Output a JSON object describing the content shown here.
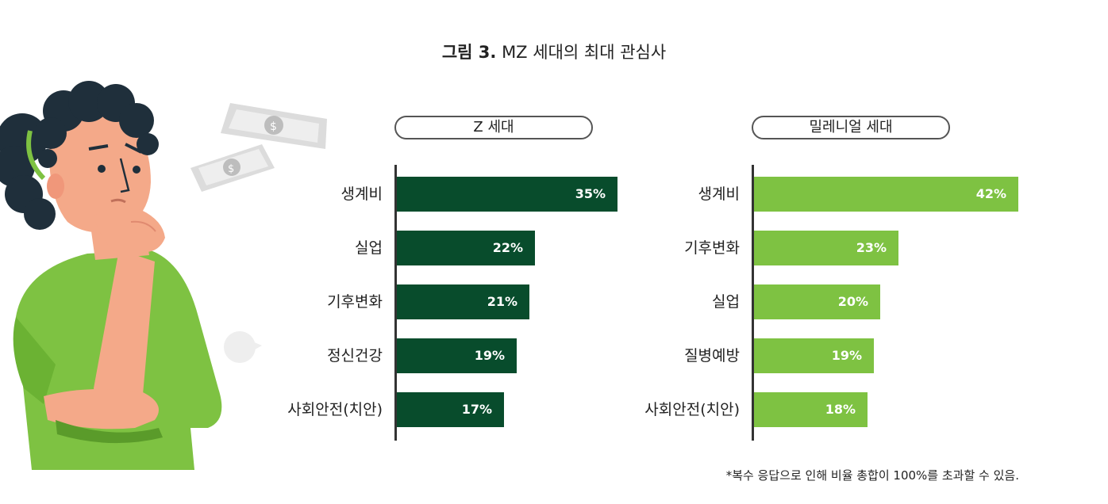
{
  "title": {
    "bold": "그림 3.",
    "rest": "MZ 세대의 최대 관심사"
  },
  "colors": {
    "z_bar": "#084c2c",
    "m_bar": "#7ec242"
  },
  "chart_data": [
    {
      "type": "bar",
      "orientation": "horizontal",
      "title": "Z 세대",
      "categories": [
        "생계비",
        "실업",
        "기후변화",
        "정신건강",
        "사회안전(치안)"
      ],
      "values": [
        35,
        22,
        21,
        19,
        17
      ],
      "value_labels": [
        "35%",
        "22%",
        "21%",
        "19%",
        "17%"
      ],
      "unit": "%",
      "xlim": [
        0,
        42
      ],
      "color": "#084c2c"
    },
    {
      "type": "bar",
      "orientation": "horizontal",
      "title": "밀레니얼 세대",
      "categories": [
        "생계비",
        "기후변화",
        "실업",
        "질병예방",
        "사회안전(치안)"
      ],
      "values": [
        42,
        23,
        20,
        19,
        18
      ],
      "value_labels": [
        "42%",
        "23%",
        "20%",
        "19%",
        "18%"
      ],
      "unit": "%",
      "xlim": [
        0,
        42
      ],
      "color": "#7ec242"
    }
  ],
  "footnote": "*복수 응답으로 인해 비율 총합이 100%를 초과할 수 있음."
}
